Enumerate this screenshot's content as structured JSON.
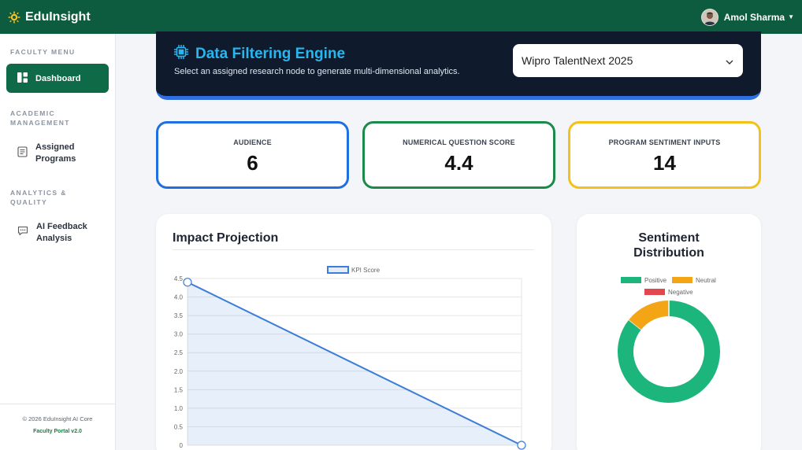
{
  "app": {
    "brand": "EduInsight",
    "user_name": "Amol Sharma"
  },
  "sidebar": {
    "sections": [
      {
        "title": "FACULTY MENU"
      },
      {
        "title": "ACADEMIC MANAGEMENT"
      },
      {
        "title": "ANALYTICS & QUALITY"
      }
    ],
    "items": [
      {
        "label": "Dashboard",
        "icon": "dashboard-icon",
        "active": true
      },
      {
        "label": "Assigned Programs",
        "icon": "document-list-icon",
        "active": false
      },
      {
        "label": "AI Feedback Analysis",
        "icon": "chat-icon",
        "active": false
      }
    ],
    "footer_copyright": "© 2026 EduInsight AI Core",
    "footer_version": "Faculty Portal v2.0"
  },
  "hero": {
    "title": "Data Filtering Engine",
    "subtitle": "Select an assigned research node to generate multi-dimensional analytics.",
    "selected_program": "Wipro TalentNext 2025"
  },
  "stats": [
    {
      "label": "AUDIENCE",
      "value": "6",
      "color": "#1f6fe0"
    },
    {
      "label": "NUMERICAL QUESTION SCORE",
      "value": "4.4",
      "color": "#1c8a4a"
    },
    {
      "label": "PROGRAM SENTIMENT INPUTS",
      "value": "14",
      "color": "#f2c21b"
    }
  ],
  "impact": {
    "title": "Impact Projection"
  },
  "sentiment": {
    "title": "Sentiment Distribution"
  },
  "colors": {
    "nav": "#0e5c3f",
    "accent": "#29b6ef",
    "line": "#3b7dd8",
    "positive": "#1cb57c",
    "neutral": "#f4a516",
    "negative": "#e2474d"
  },
  "chart_data": [
    {
      "type": "area",
      "title": "Impact Projection",
      "series": [
        {
          "name": "KPI Score",
          "values": [
            4.4,
            0
          ]
        }
      ],
      "ylim": [
        0,
        4.5
      ],
      "yticks": [
        "0",
        "0.5",
        "1.0",
        "1.5",
        "2.0",
        "2.5",
        "3.0",
        "3.5",
        "4.0",
        "4.5"
      ],
      "grid": true,
      "legend": "top-center"
    },
    {
      "type": "pie",
      "title": "Sentiment Distribution",
      "categories": [
        "Positive",
        "Neutral",
        "Negative"
      ],
      "values": [
        12,
        2,
        0
      ],
      "legend": "top-center"
    }
  ]
}
